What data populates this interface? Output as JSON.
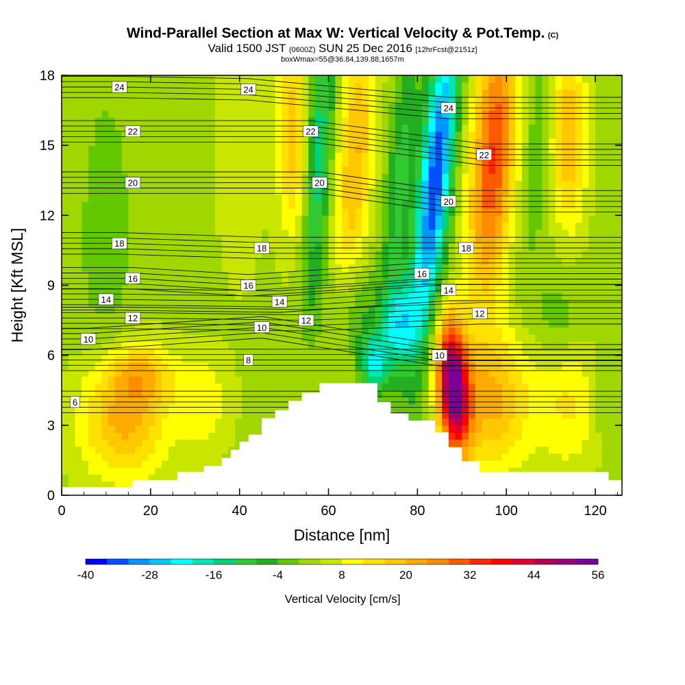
{
  "chart_data": {
    "type": "heatmap",
    "title": "Wind-Parallel Section at Max W: Vertical Velocity & Pot.Temp.",
    "title_mark": "(C)",
    "subtitle_parts": [
      "Valid 1500 JST",
      "(0600Z)",
      "SUN 25 Dec 2016",
      "[12hrFcst@2151z]"
    ],
    "subtitle2": "boxWmax=55@36.84,139.88,1657m",
    "xlabel": "Distance [nm]",
    "ylabel": "Height [Kft MSL]",
    "xlim": [
      0,
      126
    ],
    "ylim": [
      0,
      18
    ],
    "xticks": [
      0,
      20,
      40,
      60,
      80,
      100,
      120
    ],
    "yticks": [
      0,
      3,
      6,
      9,
      12,
      15,
      18
    ],
    "colorbar": {
      "title": "Vertical Velocity [cm/s]",
      "min": -40,
      "step": 4,
      "tick_labels": [
        -40,
        -28,
        -16,
        -4,
        8,
        20,
        32,
        44,
        56
      ],
      "colors": [
        "#0000ff",
        "#0050ff",
        "#0096ff",
        "#00c8ff",
        "#00ffff",
        "#00e6b4",
        "#00d278",
        "#32c832",
        "#22b022",
        "#64c800",
        "#a0d700",
        "#c8e600",
        "#ffff00",
        "#ffe100",
        "#ffc800",
        "#ffaa00",
        "#ff8c00",
        "#ff5a00",
        "#ff2800",
        "#ff0000",
        "#dc0032",
        "#b40050",
        "#960078",
        "#780096"
      ]
    },
    "terrain": [
      [
        0,
        0.35
      ],
      [
        16,
        0.35
      ],
      [
        16,
        0.65
      ],
      [
        26,
        0.65
      ],
      [
        26,
        1.0
      ],
      [
        32,
        1.0
      ],
      [
        32,
        1.25
      ],
      [
        36,
        1.25
      ],
      [
        36,
        1.6
      ],
      [
        38,
        1.6
      ],
      [
        38,
        1.95
      ],
      [
        40,
        1.95
      ],
      [
        40,
        2.3
      ],
      [
        42,
        2.3
      ],
      [
        42,
        2.6
      ],
      [
        45,
        2.6
      ],
      [
        45,
        3.3
      ],
      [
        48,
        3.3
      ],
      [
        48,
        3.65
      ],
      [
        51,
        3.65
      ],
      [
        51,
        4.05
      ],
      [
        54,
        4.05
      ],
      [
        54,
        4.4
      ],
      [
        58,
        4.4
      ],
      [
        58,
        4.8
      ],
      [
        71,
        4.8
      ],
      [
        71,
        4.0
      ],
      [
        74,
        4.0
      ],
      [
        74,
        3.5
      ],
      [
        78,
        3.5
      ],
      [
        78,
        3.2
      ],
      [
        84,
        3.2
      ],
      [
        84,
        2.7
      ],
      [
        87,
        2.7
      ],
      [
        87,
        2.05
      ],
      [
        90,
        2.05
      ],
      [
        90,
        1.45
      ],
      [
        94,
        1.45
      ],
      [
        94,
        1.0
      ],
      [
        123,
        1.0
      ],
      [
        123,
        0.65
      ],
      [
        126,
        0.65
      ]
    ],
    "wave_cells": [
      {
        "x": 14,
        "z": 3.4,
        "w": 20,
        "rx": 10,
        "rz": 2.7,
        "tilt": 0.2
      },
      {
        "x": 18,
        "z": 5.2,
        "w": 10,
        "rx": 7,
        "rz": 1.2,
        "tilt": 0
      },
      {
        "x": 32,
        "z": 4.0,
        "w": 8,
        "rx": 6,
        "rz": 2.2,
        "tilt": 0
      },
      {
        "x": 10,
        "z": 11.0,
        "w": -5,
        "rx": 6,
        "rz": 6.5,
        "tilt": 0
      },
      {
        "x": 40,
        "z": 14.5,
        "w": 4,
        "rx": 6,
        "rz": 6,
        "tilt": 0
      },
      {
        "x": 27,
        "z": 15.5,
        "w": -2,
        "rx": 4,
        "rz": 4,
        "tilt": 0
      },
      {
        "x": 52,
        "z": 15.5,
        "w": 16,
        "rx": 3.5,
        "rz": 5,
        "tilt": 0
      },
      {
        "x": 58,
        "z": 15.0,
        "w": -18,
        "rx": 2.8,
        "rz": 5.5,
        "tilt": 0.25
      },
      {
        "x": 66,
        "z": 14.5,
        "w": 18,
        "rx": 4,
        "rz": 6,
        "tilt": 0.35
      },
      {
        "x": 76,
        "z": 13.5,
        "w": -12,
        "rx": 3,
        "rz": 6.5,
        "tilt": 0.45
      },
      {
        "x": 84,
        "z": 13.5,
        "w": -38,
        "rx": 3.6,
        "rz": 7,
        "tilt": 0.5
      },
      {
        "x": 97,
        "z": 14.5,
        "w": 30,
        "rx": 5,
        "rz": 6,
        "tilt": 0.35
      },
      {
        "x": 107,
        "z": 15.0,
        "w": -6,
        "rx": 3,
        "rz": 5,
        "tilt": 0.3
      },
      {
        "x": 114,
        "z": 15.5,
        "w": 18,
        "rx": 4,
        "rz": 4,
        "tilt": 0
      },
      {
        "x": 76,
        "z": 7.3,
        "w": -22,
        "rx": 4,
        "rz": 2.0,
        "tilt": 0.3
      },
      {
        "x": 70,
        "z": 5.7,
        "w": -20,
        "rx": 3,
        "rz": 1.2,
        "tilt": 0
      },
      {
        "x": 88,
        "z": 4.7,
        "w": 52,
        "rx": 3.5,
        "rz": 2.8,
        "tilt": -0.3
      },
      {
        "x": 97,
        "z": 4.0,
        "w": 18,
        "rx": 8,
        "rz": 3,
        "tilt": 0
      },
      {
        "x": 114,
        "z": 4.0,
        "w": 10,
        "rx": 8,
        "rz": 3,
        "tilt": 0
      },
      {
        "x": 121,
        "z": 4.0,
        "w": -4,
        "rx": 3,
        "rz": 2,
        "tilt": 0
      },
      {
        "x": 66,
        "z": 8.0,
        "w": -8,
        "rx": 5,
        "rz": 2,
        "tilt": 0
      },
      {
        "x": 55,
        "z": 9.5,
        "w": -4,
        "rx": 4,
        "rz": 3,
        "tilt": 0
      },
      {
        "x": 112,
        "z": 7.5,
        "w": -6,
        "rx": 6,
        "rz": 2,
        "tilt": 0
      }
    ],
    "theta_contour_labels": [
      {
        "value": "24",
        "x": 13,
        "z": 17.5
      },
      {
        "value": "24",
        "x": 42,
        "z": 17.4
      },
      {
        "value": "24",
        "x": 87,
        "z": 16.6
      },
      {
        "value": "22",
        "x": 16,
        "z": 15.6
      },
      {
        "value": "22",
        "x": 56,
        "z": 15.6
      },
      {
        "value": "22",
        "x": 95,
        "z": 14.6
      },
      {
        "value": "20",
        "x": 16,
        "z": 13.4
      },
      {
        "value": "20",
        "x": 58,
        "z": 13.4
      },
      {
        "value": "20",
        "x": 87,
        "z": 12.6
      },
      {
        "value": "18",
        "x": 13,
        "z": 10.8
      },
      {
        "value": "18",
        "x": 45,
        "z": 10.6
      },
      {
        "value": "18",
        "x": 91,
        "z": 10.6
      },
      {
        "value": "16",
        "x": 16,
        "z": 9.3
      },
      {
        "value": "16",
        "x": 42,
        "z": 9.0
      },
      {
        "value": "16",
        "x": 81,
        "z": 9.5
      },
      {
        "value": "14",
        "x": 10,
        "z": 8.4
      },
      {
        "value": "14",
        "x": 49,
        "z": 8.3
      },
      {
        "value": "14",
        "x": 87,
        "z": 8.8
      },
      {
        "value": "12",
        "x": 16,
        "z": 7.6
      },
      {
        "value": "12",
        "x": 55,
        "z": 7.5
      },
      {
        "value": "12",
        "x": 94,
        "z": 7.8
      },
      {
        "value": "10",
        "x": 6,
        "z": 6.7
      },
      {
        "value": "10",
        "x": 45,
        "z": 7.2
      },
      {
        "value": "10",
        "x": 85,
        "z": 6.0
      },
      {
        "value": "8",
        "x": 42,
        "z": 5.8
      },
      {
        "value": "6",
        "x": 3,
        "z": 4.0
      }
    ]
  }
}
